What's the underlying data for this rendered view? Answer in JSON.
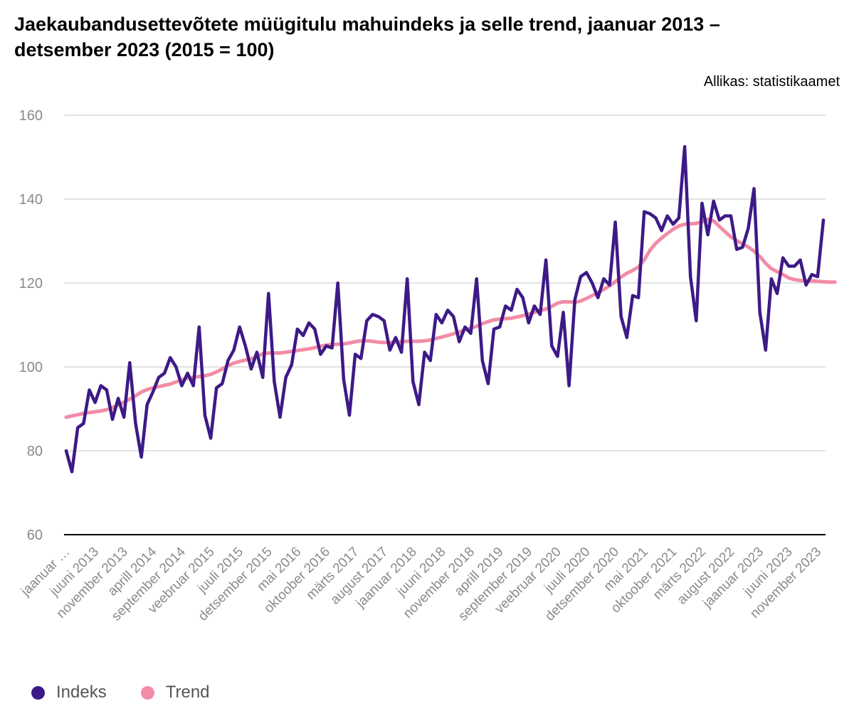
{
  "chart_data": {
    "type": "line",
    "title": "Jaekaubandusettevõtete müügitulu mahuindeks ja selle trend, jaanuar 2013 – detsember 2023 (2015 = 100)",
    "source": "Allikas: statistikaamet",
    "ylim": [
      60,
      160
    ],
    "yticks": [
      60,
      80,
      100,
      120,
      140,
      160
    ],
    "grid": true,
    "legend_position": "bottom-left",
    "x_start": "2013-01",
    "x_end": "2023-12",
    "x_tick_labels": [
      "jaanuar …",
      "juuni 2013",
      "november 2013",
      "aprill 2014",
      "september 2014",
      "veebruar 2015",
      "juuli 2015",
      "detsember 2015",
      "mai 2016",
      "oktoober 2016",
      "märts 2017",
      "august 2017",
      "jaanuar 2018",
      "juuni 2018",
      "november 2018",
      "aprill 2019",
      "september 2019",
      "veebruar 2020",
      "juuli 2020",
      "detsember 2020",
      "mai 2021",
      "oktoober 2021",
      "märts 2022",
      "august 2022",
      "jaanuar 2023",
      "juuni 2023",
      "november 2023"
    ],
    "series": [
      {
        "name": "Indeks",
        "color": "#3d1a87",
        "values": [
          80,
          75,
          85.5,
          86.5,
          94.5,
          91.5,
          95.5,
          94.5,
          87.5,
          92.5,
          88,
          101,
          86.5,
          78.5,
          91,
          94,
          97.5,
          98.5,
          102.2,
          100,
          95.5,
          98.5,
          95.5,
          109.5,
          88.5,
          83,
          95,
          96,
          101.5,
          104,
          109.5,
          105,
          99.5,
          103.5,
          97.5,
          117.5,
          96.5,
          88,
          97.5,
          100.5,
          109,
          107.5,
          110.5,
          109,
          103,
          105,
          104.5,
          120,
          97,
          88.5,
          103,
          102,
          111,
          112.5,
          112,
          111,
          104,
          107,
          103.5,
          121,
          96.5,
          91,
          103.5,
          101.5,
          112.5,
          110.5,
          113.5,
          112,
          106,
          109.5,
          108,
          121,
          101.5,
          96,
          109,
          109.5,
          114.5,
          113.5,
          118.5,
          116.5,
          110.5,
          114.5,
          112.5,
          125.5,
          105,
          102.5,
          113,
          95.5,
          116,
          121.5,
          122.5,
          120,
          116.5,
          121,
          119.5,
          134.5,
          112,
          107,
          117,
          116.5,
          137,
          136.5,
          135.5,
          132.5,
          136,
          134,
          135.5,
          152.5,
          121.5,
          111,
          139,
          131.5,
          139.5,
          135,
          136,
          136,
          128,
          128.5,
          133,
          142.5,
          113,
          104,
          121,
          117.5,
          126,
          124,
          124,
          125.5,
          119.5,
          122,
          121.5,
          135
        ]
      },
      {
        "name": "Trend",
        "color": "#f28ca7",
        "values": [
          88,
          88.3,
          88.6,
          88.9,
          89.1,
          89.3,
          89.5,
          89.8,
          90.3,
          90.9,
          91.6,
          92.3,
          93.1,
          94,
          94.6,
          95,
          95.3,
          95.6,
          95.9,
          96.4,
          96.9,
          97.3,
          97.5,
          97.7,
          97.9,
          98.2,
          98.8,
          99.5,
          100.3,
          100.9,
          101.3,
          101.6,
          101.9,
          102.5,
          103.1,
          103.3,
          103.3,
          103.3,
          103.5,
          103.7,
          103.9,
          104.1,
          104.3,
          104.6,
          104.9,
          105.2,
          105.3,
          105.4,
          105.5,
          105.7,
          106,
          106.2,
          106.2,
          106.1,
          105.9,
          105.8,
          105.8,
          105.9,
          106,
          106.1,
          106.1,
          106.1,
          106.2,
          106.4,
          106.8,
          107.1,
          107.5,
          107.9,
          108.3,
          108.8,
          109.2,
          109.7,
          110.3,
          110.8,
          111.2,
          111.4,
          111.5,
          111.6,
          111.9,
          112.2,
          112.6,
          113,
          113.4,
          113.8,
          114.4,
          115.2,
          115.5,
          115.5,
          115.4,
          115.7,
          116.3,
          117,
          117.7,
          118.5,
          119.3,
          120.3,
          121.4,
          122.3,
          123,
          123.8,
          125.5,
          127.8,
          129.5,
          130.7,
          131.8,
          132.8,
          133.6,
          134,
          134.1,
          134.2,
          134.6,
          135.2,
          134.8,
          133.5,
          132.2,
          131,
          130.1,
          129.3,
          128.6,
          127.6,
          126.3,
          124.7,
          123.4,
          122.7,
          122,
          121.2,
          120.8,
          120.6,
          120.5,
          120.5,
          120.4,
          120.3,
          120.2,
          120.2
        ]
      }
    ]
  }
}
